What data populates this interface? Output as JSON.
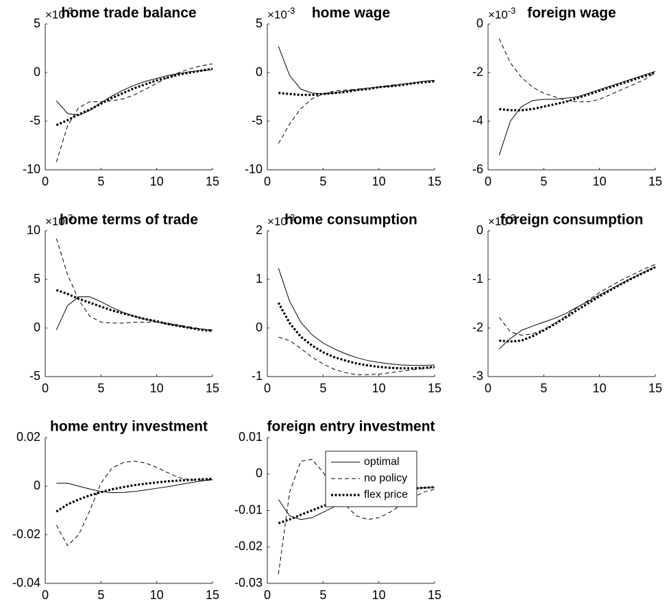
{
  "chart_data": [
    {
      "type": "line",
      "title": "home trade balance",
      "y_multiplier": {
        "base": "×10",
        "exponent": "-3"
      },
      "x": [
        1,
        2,
        3,
        4,
        5,
        6,
        7,
        8,
        9,
        10,
        11,
        12,
        13,
        14,
        15
      ],
      "xlim": [
        0,
        15
      ],
      "xticks": [
        0,
        5,
        10,
        15
      ],
      "ylim": [
        -10,
        5
      ],
      "yticks": [
        -10,
        -5,
        0,
        5
      ],
      "grid": false,
      "legend": false,
      "series": [
        {
          "name": "optimal",
          "color": "#000000",
          "style": "solid",
          "values": [
            -2.9,
            -4.2,
            -4.4,
            -3.9,
            -3.1,
            -2.4,
            -1.8,
            -1.3,
            -0.9,
            -0.6,
            -0.3,
            -0.1,
            0.1,
            0.2,
            0.3
          ]
        },
        {
          "name": "no policy",
          "color": "#000000",
          "style": "dashed",
          "values": [
            -9.2,
            -5.5,
            -3.6,
            -3.0,
            -3.0,
            -2.9,
            -2.7,
            -2.3,
            -1.7,
            -1.1,
            -0.5,
            0.0,
            0.4,
            0.7,
            0.9
          ]
        },
        {
          "name": "flex price",
          "color": "#000000",
          "style": "dotted",
          "values": [
            -5.4,
            -4.9,
            -4.3,
            -3.8,
            -3.2,
            -2.6,
            -2.1,
            -1.6,
            -1.2,
            -0.8,
            -0.5,
            -0.2,
            0.0,
            0.2,
            0.4
          ]
        }
      ]
    },
    {
      "type": "line",
      "title": "home wage",
      "y_multiplier": {
        "base": "×10",
        "exponent": "-3"
      },
      "x": [
        1,
        2,
        3,
        4,
        5,
        6,
        7,
        8,
        9,
        10,
        11,
        12,
        13,
        14,
        15
      ],
      "xlim": [
        0,
        15
      ],
      "xticks": [
        0,
        5,
        10,
        15
      ],
      "ylim": [
        -10,
        5
      ],
      "yticks": [
        -10,
        -5,
        0,
        5
      ],
      "grid": false,
      "legend": false,
      "series": [
        {
          "name": "optimal",
          "color": "#000000",
          "style": "solid",
          "values": [
            2.7,
            -0.3,
            -1.7,
            -2.1,
            -2.2,
            -2.1,
            -1.9,
            -1.8,
            -1.6,
            -1.5,
            -1.4,
            -1.2,
            -1.1,
            -0.9,
            -0.8
          ]
        },
        {
          "name": "no policy",
          "color": "#000000",
          "style": "dashed",
          "values": [
            -7.3,
            -5.3,
            -3.7,
            -2.7,
            -2.2,
            -1.9,
            -1.8,
            -1.7,
            -1.6,
            -1.5,
            -1.3,
            -1.2,
            -1.1,
            -0.9,
            -0.8
          ]
        },
        {
          "name": "flex price",
          "color": "#000000",
          "style": "dotted",
          "values": [
            -2.1,
            -2.2,
            -2.3,
            -2.3,
            -2.2,
            -2.1,
            -2.0,
            -1.8,
            -1.7,
            -1.5,
            -1.4,
            -1.3,
            -1.1,
            -1.0,
            -0.9
          ]
        }
      ]
    },
    {
      "type": "line",
      "title": "foreign wage",
      "y_multiplier": {
        "base": "×10",
        "exponent": "-3"
      },
      "x": [
        1,
        2,
        3,
        4,
        5,
        6,
        7,
        8,
        9,
        10,
        11,
        12,
        13,
        14,
        15
      ],
      "xlim": [
        0,
        15
      ],
      "xticks": [
        0,
        5,
        10,
        15
      ],
      "ylim": [
        -6,
        0
      ],
      "yticks": [
        -6,
        -4,
        -2,
        0
      ],
      "grid": false,
      "legend": false,
      "series": [
        {
          "name": "optimal",
          "color": "#000000",
          "style": "solid",
          "values": [
            -5.4,
            -4.0,
            -3.4,
            -3.15,
            -3.1,
            -3.1,
            -3.05,
            -3.0,
            -2.85,
            -2.7,
            -2.55,
            -2.4,
            -2.25,
            -2.1,
            -1.95
          ]
        },
        {
          "name": "no policy",
          "color": "#000000",
          "style": "dashed",
          "values": [
            -0.6,
            -1.6,
            -2.2,
            -2.6,
            -2.85,
            -3.0,
            -3.15,
            -3.2,
            -3.2,
            -3.1,
            -2.9,
            -2.7,
            -2.5,
            -2.3,
            -2.0
          ]
        },
        {
          "name": "flex price",
          "color": "#000000",
          "style": "dotted",
          "values": [
            -3.5,
            -3.55,
            -3.55,
            -3.5,
            -3.4,
            -3.3,
            -3.2,
            -3.05,
            -2.9,
            -2.75,
            -2.6,
            -2.45,
            -2.3,
            -2.15,
            -2.0
          ]
        }
      ]
    },
    {
      "type": "line",
      "title": "home terms of trade",
      "y_multiplier": {
        "base": "×10",
        "exponent": "-3"
      },
      "x": [
        1,
        2,
        3,
        4,
        5,
        6,
        7,
        8,
        9,
        10,
        11,
        12,
        13,
        14,
        15
      ],
      "xlim": [
        0,
        15
      ],
      "xticks": [
        0,
        5,
        10,
        15
      ],
      "ylim": [
        -5,
        10
      ],
      "yticks": [
        -5,
        0,
        5,
        10
      ],
      "grid": false,
      "legend": false,
      "series": [
        {
          "name": "optimal",
          "color": "#000000",
          "style": "solid",
          "values": [
            -0.2,
            2.3,
            3.2,
            3.2,
            2.7,
            2.1,
            1.6,
            1.2,
            0.9,
            0.6,
            0.4,
            0.2,
            0.0,
            -0.1,
            -0.3
          ]
        },
        {
          "name": "no policy",
          "color": "#000000",
          "style": "dashed",
          "values": [
            9.2,
            5.5,
            2.9,
            1.2,
            0.6,
            0.5,
            0.5,
            0.6,
            0.6,
            0.6,
            0.5,
            0.3,
            0.1,
            -0.1,
            -0.2
          ]
        },
        {
          "name": "flex price",
          "color": "#000000",
          "style": "dotted",
          "values": [
            3.9,
            3.5,
            3.0,
            2.6,
            2.2,
            1.8,
            1.5,
            1.2,
            0.9,
            0.7,
            0.4,
            0.2,
            0.0,
            -0.2,
            -0.3
          ]
        }
      ]
    },
    {
      "type": "line",
      "title": "home consumption",
      "y_multiplier": {
        "base": "×10",
        "exponent": "-3"
      },
      "x": [
        1,
        2,
        3,
        4,
        5,
        6,
        7,
        8,
        9,
        10,
        11,
        12,
        13,
        14,
        15
      ],
      "xlim": [
        0,
        15
      ],
      "xticks": [
        0,
        5,
        10,
        15
      ],
      "ylim": [
        -1,
        2
      ],
      "yticks": [
        -1,
        0,
        1,
        2
      ],
      "grid": false,
      "legend": false,
      "series": [
        {
          "name": "optimal",
          "color": "#000000",
          "style": "solid",
          "values": [
            1.23,
            0.55,
            0.12,
            -0.14,
            -0.31,
            -0.43,
            -0.53,
            -0.61,
            -0.67,
            -0.71,
            -0.74,
            -0.76,
            -0.77,
            -0.77,
            -0.76
          ]
        },
        {
          "name": "no policy",
          "color": "#000000",
          "style": "dashed",
          "values": [
            -0.19,
            -0.26,
            -0.42,
            -0.6,
            -0.74,
            -0.85,
            -0.92,
            -0.96,
            -0.96,
            -0.95,
            -0.92,
            -0.89,
            -0.86,
            -0.84,
            -0.82
          ]
        },
        {
          "name": "flex price",
          "color": "#000000",
          "style": "dotted",
          "values": [
            0.52,
            0.1,
            -0.18,
            -0.36,
            -0.5,
            -0.6,
            -0.67,
            -0.73,
            -0.77,
            -0.8,
            -0.82,
            -0.83,
            -0.83,
            -0.82,
            -0.8
          ]
        }
      ]
    },
    {
      "type": "line",
      "title": "foreign consumption",
      "y_multiplier": {
        "base": "×10",
        "exponent": "-3"
      },
      "x": [
        1,
        2,
        3,
        4,
        5,
        6,
        7,
        8,
        9,
        10,
        11,
        12,
        13,
        14,
        15
      ],
      "xlim": [
        0,
        15
      ],
      "xticks": [
        0,
        5,
        10,
        15
      ],
      "ylim": [
        -3,
        0
      ],
      "yticks": [
        -3,
        -2,
        -1,
        0
      ],
      "grid": false,
      "legend": false,
      "series": [
        {
          "name": "optimal",
          "color": "#000000",
          "style": "solid",
          "values": [
            -2.43,
            -2.22,
            -2.05,
            -1.96,
            -1.88,
            -1.8,
            -1.7,
            -1.57,
            -1.45,
            -1.32,
            -1.2,
            -1.08,
            -0.96,
            -0.85,
            -0.74
          ]
        },
        {
          "name": "no policy",
          "color": "#000000",
          "style": "dashed",
          "values": [
            -1.78,
            -2.08,
            -2.15,
            -2.12,
            -2.03,
            -1.9,
            -1.75,
            -1.58,
            -1.43,
            -1.27,
            -1.14,
            -1.01,
            -0.9,
            -0.79,
            -0.69
          ]
        },
        {
          "name": "flex price",
          "color": "#000000",
          "style": "dotted",
          "values": [
            -2.26,
            -2.28,
            -2.26,
            -2.17,
            -2.05,
            -1.92,
            -1.78,
            -1.63,
            -1.49,
            -1.35,
            -1.22,
            -1.09,
            -0.97,
            -0.86,
            -0.75
          ]
        }
      ]
    },
    {
      "type": "line",
      "title": "home entry investment",
      "x": [
        1,
        2,
        3,
        4,
        5,
        6,
        7,
        8,
        9,
        10,
        11,
        12,
        13,
        14,
        15
      ],
      "xlim": [
        0,
        15
      ],
      "xticks": [
        0,
        5,
        10,
        15
      ],
      "ylim": [
        -0.04,
        0.02
      ],
      "yticks": [
        -0.04,
        -0.02,
        0,
        0.02
      ],
      "grid": false,
      "legend": false,
      "series": [
        {
          "name": "optimal",
          "color": "#000000",
          "style": "solid",
          "values": [
            0.0012,
            0.0012,
            0.0,
            -0.0012,
            -0.0022,
            -0.0027,
            -0.0026,
            -0.0022,
            -0.0016,
            -0.0009,
            -0.0002,
            0.0006,
            0.0014,
            0.0021,
            0.0026
          ]
        },
        {
          "name": "no policy",
          "color": "#000000",
          "style": "dashed",
          "values": [
            -0.016,
            -0.0245,
            -0.02,
            -0.01,
            0.0012,
            0.0075,
            0.0097,
            0.0103,
            0.0095,
            0.0077,
            0.0055,
            0.0035,
            0.0025,
            0.0025,
            0.0028
          ]
        },
        {
          "name": "flex price",
          "color": "#000000",
          "style": "dotted",
          "values": [
            -0.0105,
            -0.0075,
            -0.0055,
            -0.0038,
            -0.0025,
            -0.0013,
            -0.0004,
            0.0004,
            0.001,
            0.0015,
            0.002,
            0.0023,
            0.0026,
            0.0028,
            0.003
          ]
        }
      ]
    },
    {
      "type": "line",
      "title": "foreign entry investment",
      "x": [
        1,
        2,
        3,
        4,
        5,
        6,
        7,
        8,
        9,
        10,
        11,
        12,
        13,
        14,
        15
      ],
      "xlim": [
        0,
        15
      ],
      "xticks": [
        0,
        5,
        10,
        15
      ],
      "ylim": [
        -0.03,
        0.01
      ],
      "yticks": [
        -0.03,
        -0.02,
        -0.01,
        0,
        0.01
      ],
      "grid": false,
      "legend": "north east",
      "series": [
        {
          "name": "optimal",
          "color": "#000000",
          "style": "solid",
          "values": [
            -0.007,
            -0.0115,
            -0.0125,
            -0.012,
            -0.0105,
            -0.009,
            -0.008,
            -0.0068,
            -0.0058,
            -0.0052,
            -0.0047,
            -0.0043,
            -0.004,
            -0.0038,
            -0.0037
          ]
        },
        {
          "name": "no policy",
          "color": "#000000",
          "style": "dashed",
          "values": [
            -0.0275,
            -0.005,
            0.0035,
            0.004,
            0.0005,
            -0.0045,
            -0.0085,
            -0.0115,
            -0.0125,
            -0.012,
            -0.0105,
            -0.0085,
            -0.0065,
            -0.005,
            -0.0042
          ]
        },
        {
          "name": "flex price",
          "color": "#000000",
          "style": "dotted",
          "values": [
            -0.0135,
            -0.0125,
            -0.0112,
            -0.01,
            -0.0088,
            -0.0077,
            -0.0067,
            -0.006,
            -0.0054,
            -0.0049,
            -0.0045,
            -0.0042,
            -0.004,
            -0.0038,
            -0.0036
          ]
        }
      ]
    }
  ]
}
